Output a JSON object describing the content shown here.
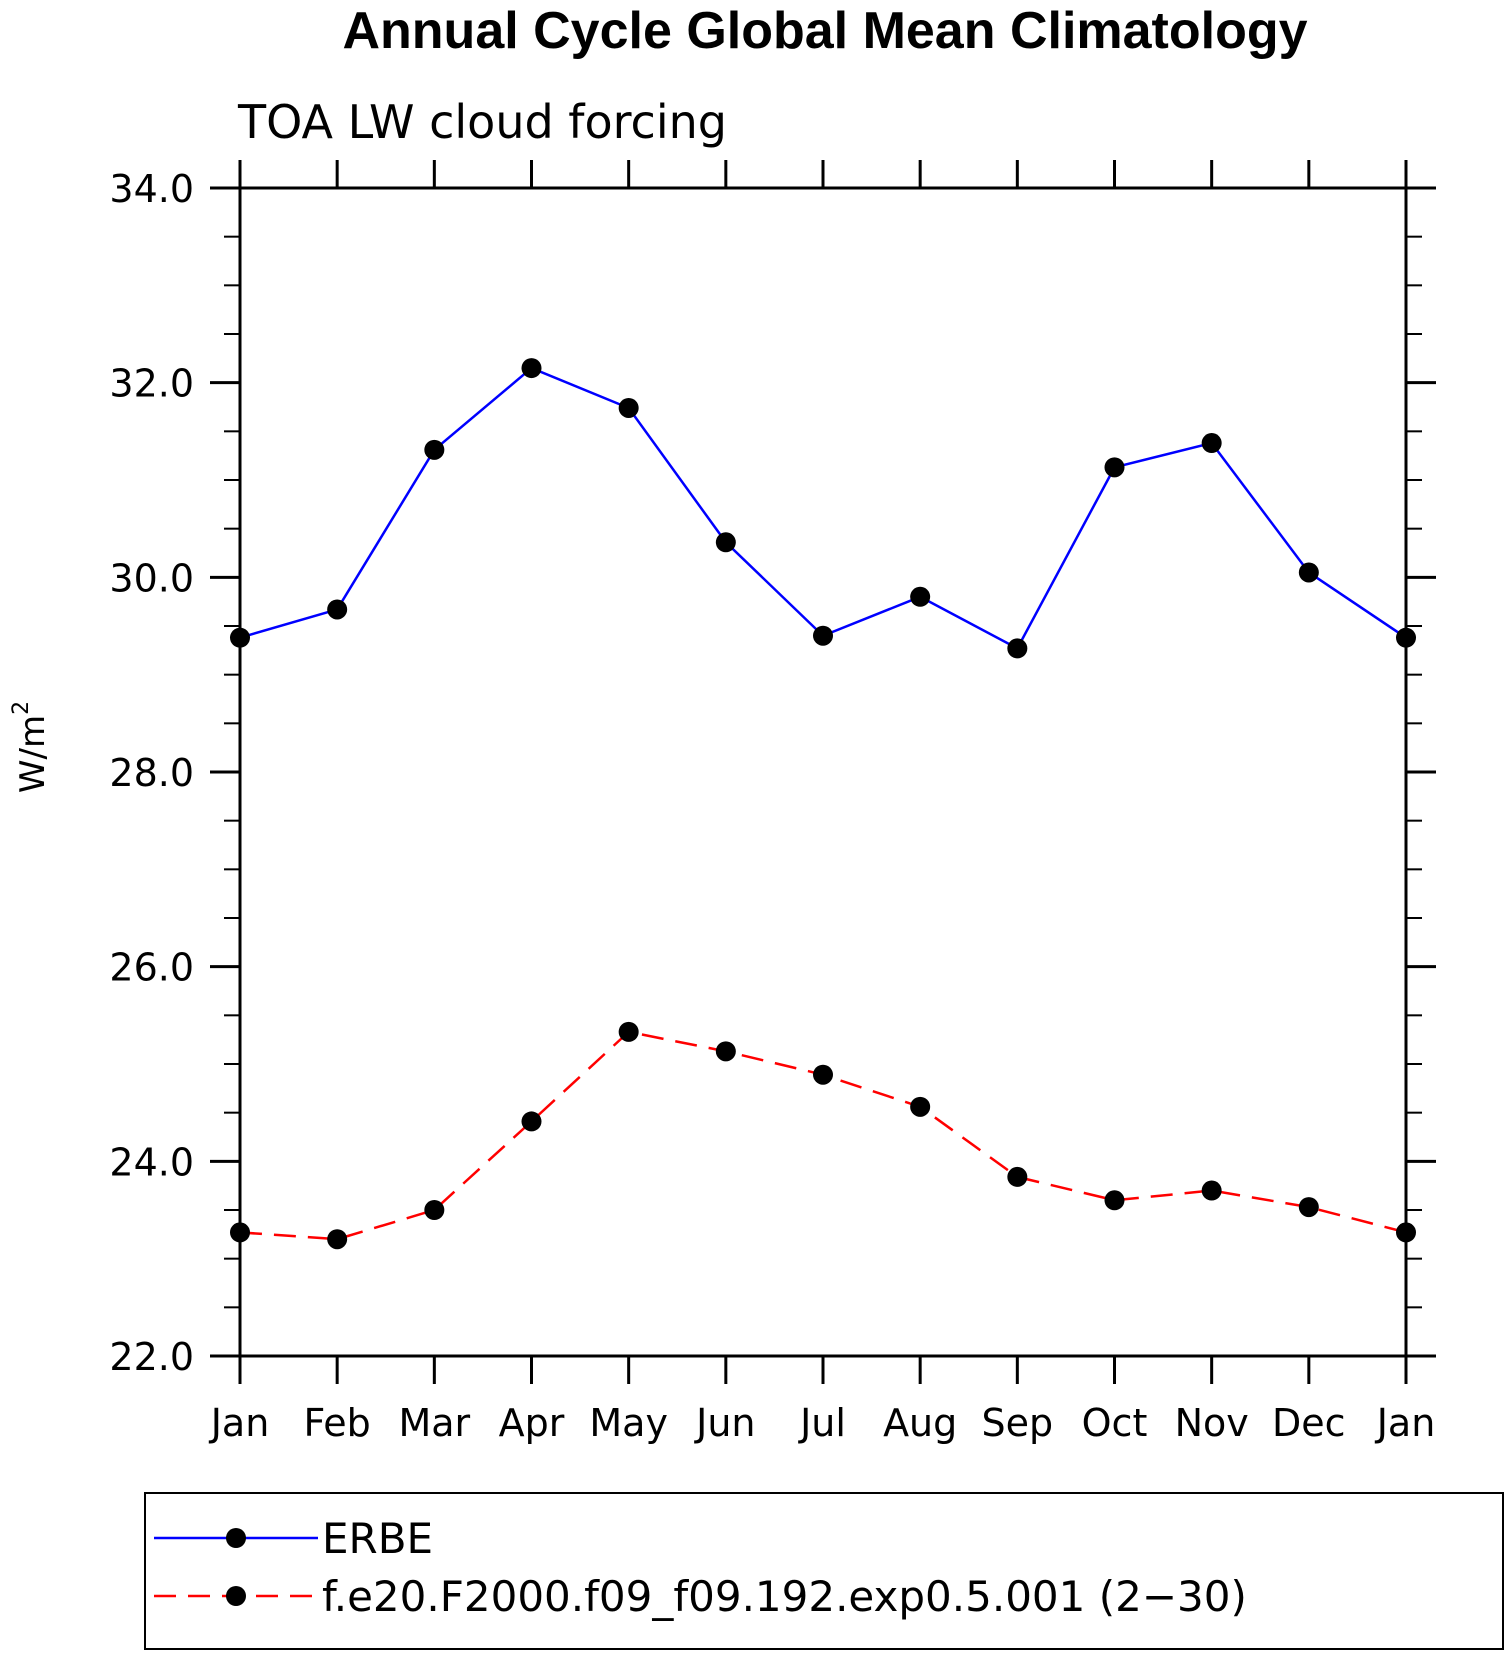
{
  "chart_data": {
    "type": "line",
    "title": "Annual Cycle Global Mean Climatology",
    "subtitle": "TOA LW cloud forcing",
    "xlabel": "",
    "ylabel": "W/m",
    "ylabel_superscript": "2",
    "categories": [
      "Jan",
      "Feb",
      "Mar",
      "Apr",
      "May",
      "Jun",
      "Jul",
      "Aug",
      "Sep",
      "Oct",
      "Nov",
      "Dec",
      "Jan"
    ],
    "ylim": [
      22.0,
      34.0
    ],
    "yticks": [
      "22.0",
      "24.0",
      "26.0",
      "28.0",
      "30.0",
      "32.0",
      "34.0"
    ],
    "grid": false,
    "legend_position": "bottom",
    "series": [
      {
        "name": "ERBE",
        "color": "#0000ff",
        "line_style": "solid",
        "marker": "filled-circle",
        "values": [
          29.38,
          29.67,
          31.31,
          32.15,
          31.74,
          30.36,
          29.4,
          29.8,
          29.27,
          31.13,
          31.38,
          30.05,
          29.38
        ]
      },
      {
        "name": "f.e20.F2000.f09_f09.192.exp0.5.001 (2−30)",
        "color": "#ff0000",
        "line_style": "dashed",
        "marker": "filled-circle",
        "values": [
          23.27,
          23.2,
          23.5,
          24.41,
          25.33,
          25.13,
          24.89,
          24.56,
          23.84,
          23.6,
          23.7,
          23.53,
          23.27
        ]
      }
    ]
  }
}
